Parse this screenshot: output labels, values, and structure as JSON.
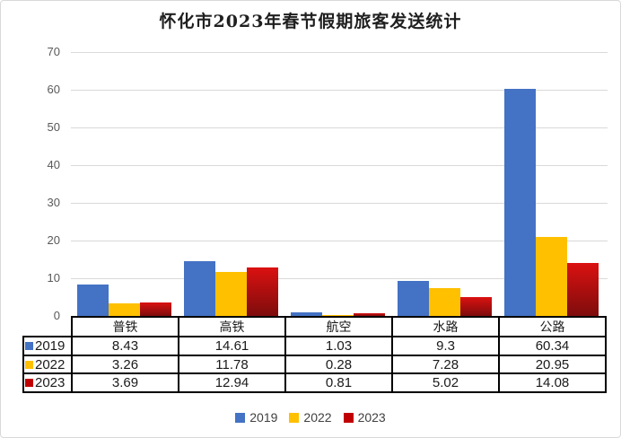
{
  "title": "怀化市2023年春节假期旅客发送统计",
  "chart_data": {
    "type": "bar",
    "title": "怀化市2023年春节假期旅客发送统计",
    "categories": [
      "普铁",
      "高铁",
      "航空",
      "水路",
      "公路"
    ],
    "series": [
      {
        "name": "2019",
        "color": "#4472C4",
        "values": [
          8.43,
          14.61,
          1.03,
          9.3,
          60.34
        ]
      },
      {
        "name": "2022",
        "color": "#FFC000",
        "values": [
          3.26,
          11.78,
          0.28,
          7.28,
          20.95
        ]
      },
      {
        "name": "2023",
        "color": "#C00000",
        "gradient": [
          "#DB1111",
          "#7E0C0C"
        ],
        "values": [
          3.69,
          12.94,
          0.81,
          5.02,
          14.08
        ]
      }
    ],
    "ylim": [
      0,
      70
    ],
    "ytick_step": 10,
    "grid": true,
    "legend_position": "bottom",
    "data_table": true
  },
  "colors": {
    "grid": "#D9D9D9",
    "axis_text": "#595959",
    "legend_text": "#404040",
    "table_border": "#000000",
    "frame_border": "#D9D9D9",
    "background": "#FFFFFF"
  }
}
